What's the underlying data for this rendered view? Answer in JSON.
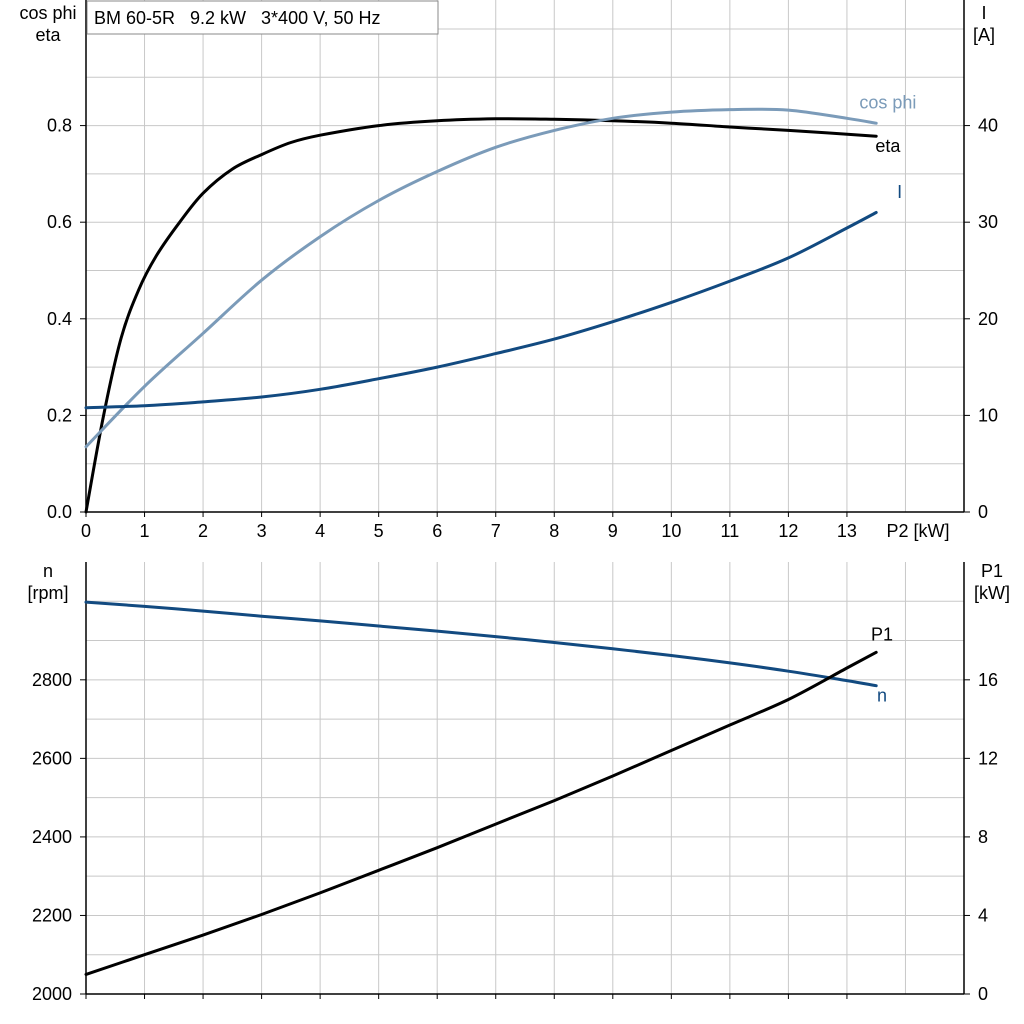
{
  "title_box": "BM 60-5R   9.2 kW   3*400 V, 50 Hz",
  "colors": {
    "eta": "#000000",
    "cos_phi": "#7b9bb9",
    "I": "#124a80",
    "n": "#124a80",
    "P1": "#000000",
    "grid": "#c8c8c8"
  },
  "chart_data": [
    {
      "type": "line",
      "x_axis": {
        "label": "P2 [kW]",
        "range": [
          0,
          15
        ],
        "ticks": [
          0,
          1,
          2,
          3,
          4,
          5,
          6,
          7,
          8,
          9,
          10,
          11,
          12,
          13
        ]
      },
      "left_axis": {
        "label_lines": [
          "cos phi",
          "eta"
        ],
        "range": [
          0,
          1.06
        ],
        "ticks": [
          0.0,
          0.2,
          0.4,
          0.6,
          0.8
        ],
        "tick_labels": [
          "0.0",
          "0.2",
          "0.4",
          "0.6",
          "0.8"
        ]
      },
      "right_axis": {
        "label_lines": [
          "I",
          "[A]"
        ],
        "range": [
          0,
          53
        ],
        "ticks": [
          0,
          10,
          20,
          30,
          40
        ],
        "tick_labels": [
          "0",
          "10",
          "20",
          "30",
          "40"
        ]
      },
      "grid": true,
      "series": [
        {
          "name": "eta",
          "axis": "left",
          "color": "#000000",
          "x": [
            0,
            0.3,
            0.6,
            0.9,
            1.2,
            1.6,
            2.0,
            2.5,
            3,
            3.5,
            4,
            5,
            6,
            7,
            8,
            9,
            10,
            11,
            12,
            13.5
          ],
          "y": [
            0,
            0.2,
            0.36,
            0.46,
            0.53,
            0.6,
            0.66,
            0.71,
            0.74,
            0.765,
            0.78,
            0.8,
            0.81,
            0.814,
            0.813,
            0.81,
            0.805,
            0.797,
            0.79,
            0.778
          ]
        },
        {
          "name": "cos phi",
          "axis": "left",
          "color": "#7b9bb9",
          "x": [
            0,
            1,
            2,
            3,
            4,
            5,
            6,
            7,
            8,
            9,
            10,
            11,
            12,
            13,
            13.5
          ],
          "y": [
            0.135,
            0.26,
            0.37,
            0.48,
            0.57,
            0.645,
            0.705,
            0.755,
            0.79,
            0.815,
            0.828,
            0.833,
            0.832,
            0.815,
            0.805
          ]
        },
        {
          "name": "I",
          "axis": "right",
          "color": "#124a80",
          "x": [
            0,
            1,
            2,
            3,
            4,
            5,
            6,
            7,
            8,
            9,
            10,
            11,
            12,
            13,
            13.5
          ],
          "y": [
            10.8,
            11.0,
            11.4,
            11.9,
            12.7,
            13.8,
            15.0,
            16.4,
            17.9,
            19.7,
            21.7,
            23.9,
            26.3,
            29.4,
            31.0
          ]
        }
      ],
      "series_labels": [
        {
          "text": "cos phi",
          "series": "cos phi",
          "x": 13.7,
          "y": 0.835,
          "axis": "left"
        },
        {
          "text": "eta",
          "series": "eta",
          "x": 13.7,
          "y": 0.745,
          "axis": "left"
        },
        {
          "text": "I",
          "series": "I",
          "x": 13.9,
          "y": 32.5,
          "axis": "right"
        }
      ]
    },
    {
      "type": "line",
      "x_axis": {
        "label": "",
        "range": [
          0,
          15
        ],
        "ticks": [
          0,
          1,
          2,
          3,
          4,
          5,
          6,
          7,
          8,
          9,
          10,
          11,
          12,
          13
        ]
      },
      "left_axis": {
        "label_lines": [
          "n",
          "[rpm]"
        ],
        "range": [
          2000,
          3100
        ],
        "ticks": [
          2000,
          2200,
          2400,
          2600,
          2800
        ],
        "tick_labels": [
          "2000",
          "2200",
          "2400",
          "2600",
          "2800"
        ]
      },
      "right_axis": {
        "label_lines": [
          "P1",
          "[kW]"
        ],
        "range": [
          0,
          22
        ],
        "ticks": [
          0,
          4,
          8,
          12,
          16
        ],
        "tick_labels": [
          "0",
          "4",
          "8",
          "12",
          "16"
        ]
      },
      "grid": true,
      "series": [
        {
          "name": "n",
          "axis": "left",
          "color": "#124a80",
          "x": [
            0,
            1,
            2,
            3,
            4,
            5,
            6,
            7,
            8,
            9,
            10,
            11,
            12,
            13,
            13.5
          ],
          "y": [
            2998,
            2987,
            2975,
            2962,
            2950,
            2937,
            2924,
            2910,
            2895,
            2879,
            2862,
            2843,
            2822,
            2798,
            2785
          ]
        },
        {
          "name": "P1",
          "axis": "right",
          "color": "#000000",
          "x": [
            0,
            1,
            2,
            3,
            4,
            5,
            6,
            7,
            8,
            9,
            10,
            11,
            12,
            13,
            13.5
          ],
          "y": [
            1.0,
            2.0,
            3.0,
            4.05,
            5.15,
            6.3,
            7.45,
            8.65,
            9.85,
            11.1,
            12.4,
            13.7,
            15.0,
            16.6,
            17.4
          ]
        }
      ],
      "series_labels": [
        {
          "text": "P1",
          "series": "P1",
          "x": 13.6,
          "y": 18.0,
          "axis": "right"
        },
        {
          "text": "n",
          "series": "n",
          "x": 13.6,
          "y": 2745,
          "axis": "left"
        }
      ]
    }
  ]
}
